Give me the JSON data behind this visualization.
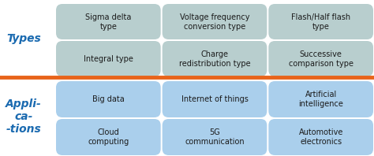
{
  "background_color": "#ffffff",
  "divider_color": "#e8641a",
  "types_label": "Types",
  "apps_label": "Appli-\nca-\n-tions",
  "types_label_color": "#1a6ab0",
  "apps_label_color": "#1a6ab0",
  "types_box_color": "#b8cece",
  "apps_box_color": "#aacfec",
  "box_text_color": "#1a1a1a",
  "types_boxes": [
    [
      "Sigma delta\ntype",
      "Voltage frequency\nconversion type",
      "Flash/Half flash\ntype"
    ],
    [
      "Integral type",
      "Charge\nredistribution type",
      "Successive\ncomparison type"
    ]
  ],
  "apps_boxes": [
    [
      "Big data",
      "Internet of things",
      "Artificial\nintelligence"
    ],
    [
      "Cloud\ncomputing",
      "5G\ncommunication",
      "Automotive\nelectronics"
    ]
  ],
  "fig_width": 4.74,
  "fig_height": 1.98,
  "dpi": 100
}
